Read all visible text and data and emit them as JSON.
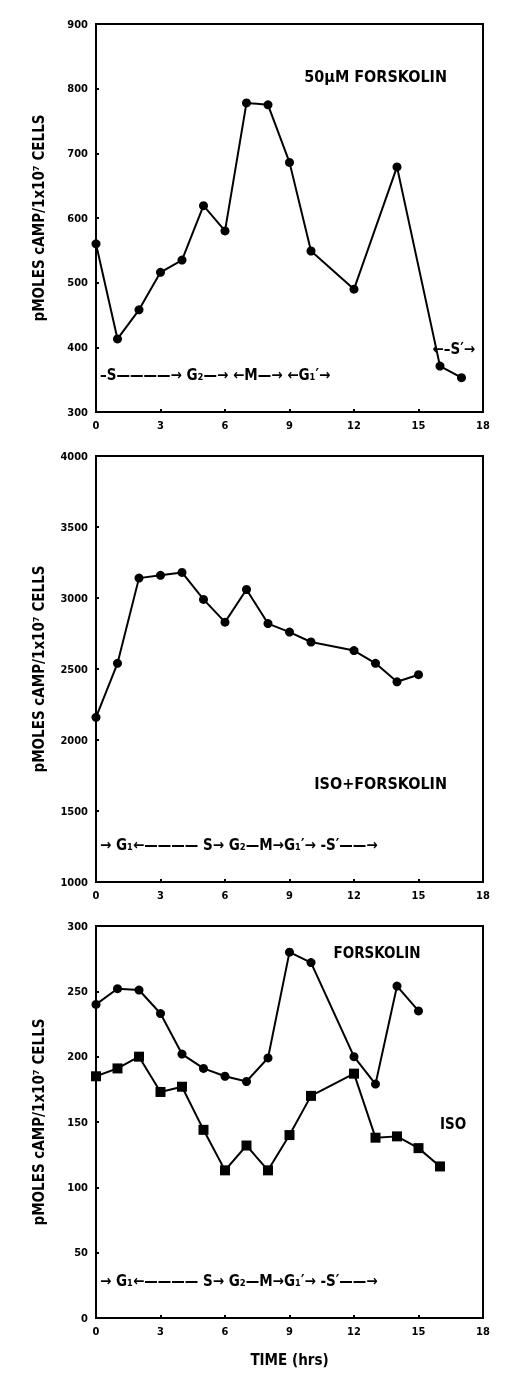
{
  "chart_data": [
    {
      "type": "line",
      "title": "50μM FORSKOLIN",
      "ylabel": "pMOLES cAMP/1x10⁷ CELLS",
      "marker": "circle",
      "grid": false,
      "legend": false,
      "xlim": [
        0,
        18
      ],
      "xticks": [
        0,
        3,
        6,
        9,
        12,
        15,
        18
      ],
      "ylim": [
        300,
        900
      ],
      "yticks": [
        300,
        400,
        500,
        600,
        700,
        800,
        900
      ],
      "series": [
        {
          "color": "#000000",
          "x": [
            0,
            1,
            2,
            3,
            4,
            5,
            6,
            7,
            8,
            9,
            10,
            12,
            14,
            16,
            17
          ],
          "values": [
            560,
            413,
            458,
            516,
            535,
            619,
            580,
            778,
            775,
            686,
            549,
            490,
            679,
            371,
            353
          ]
        }
      ],
      "annotations": [
        "–S————→ G₂—→ ←M—→ ←G₁′→",
        "←–S′→"
      ]
    },
    {
      "type": "line",
      "title": "ISO+FORSKOLIN",
      "ylabel": "pMOLES cAMP/1x10⁷ CELLS",
      "marker": "circle",
      "grid": false,
      "legend": false,
      "xlim": [
        0,
        18
      ],
      "xticks": [
        0,
        3,
        6,
        9,
        12,
        15,
        18
      ],
      "ylim": [
        1000,
        4000
      ],
      "yticks": [
        1000,
        1500,
        2000,
        2500,
        3000,
        3500,
        4000
      ],
      "series": [
        {
          "color": "#000000",
          "x": [
            0,
            1,
            2,
            3,
            4,
            5,
            6,
            7,
            8,
            9,
            10,
            12,
            13,
            14,
            15
          ],
          "values": [
            2160,
            2540,
            3140,
            3160,
            3180,
            2990,
            2830,
            3060,
            2820,
            2760,
            2690,
            2630,
            2540,
            2410,
            2460
          ]
        }
      ],
      "annotations": [
        "→ G₁←———— S→ G₂—M→G₁′→ -S′——→"
      ]
    },
    {
      "type": "line",
      "xlabel": "TIME (hrs)",
      "ylabel": "pMOLES cAMP/1x10⁷ CELLS",
      "grid": false,
      "legend": false,
      "xlim": [
        0,
        18
      ],
      "xticks": [
        0,
        3,
        6,
        9,
        12,
        15,
        18
      ],
      "ylim": [
        0,
        300
      ],
      "yticks": [
        0,
        50,
        100,
        150,
        200,
        250,
        300
      ],
      "series": [
        {
          "name": "FORSKOLIN",
          "marker": "circle",
          "color": "#000000",
          "x": [
            0,
            1,
            2,
            3,
            4,
            5,
            6,
            7,
            8,
            9,
            10,
            12,
            13,
            14,
            15
          ],
          "values": [
            240,
            252,
            251,
            233,
            202,
            191,
            185,
            181,
            199,
            280,
            272,
            200,
            179,
            254,
            235
          ]
        },
        {
          "name": "ISO",
          "marker": "square",
          "color": "#000000",
          "x": [
            0,
            1,
            2,
            3,
            4,
            5,
            6,
            7,
            8,
            9,
            10,
            12,
            13,
            14,
            15,
            16
          ],
          "values": [
            185,
            191,
            200,
            173,
            177,
            144,
            113,
            132,
            113,
            140,
            170,
            187,
            138,
            139,
            130,
            116
          ]
        }
      ],
      "annotations": [
        "→ G₁←———— S→ G₂—M→G₁′→ -S′——→"
      ]
    }
  ]
}
